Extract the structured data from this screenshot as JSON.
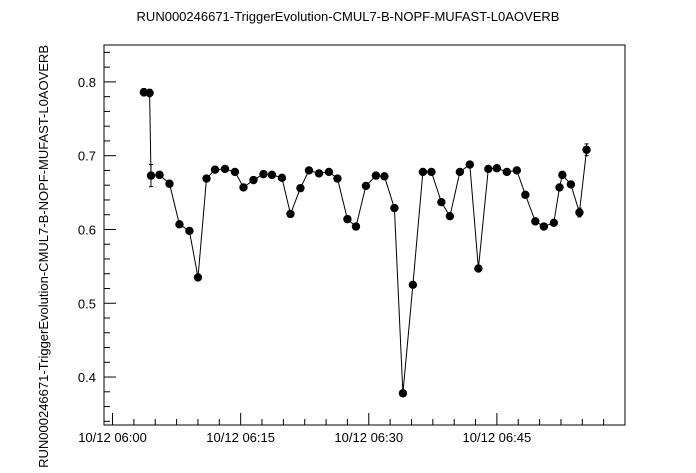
{
  "chart_data": {
    "type": "scatter",
    "title": "RUN000246671-TriggerEvolution-CMUL7-B-NOPF-MUFAST-L0AOVERB",
    "xlabel": "",
    "ylabel": "RUN000246671-TriggerEvolution-CMUL7-B-NOPF-MUFAST-L0AOVERB",
    "xlim": [
      "10/12 05:59:00",
      "10/12 07:00:00"
    ],
    "ylim": [
      0.335,
      0.85
    ],
    "x_ticks": [
      "10/12 06:00",
      "10/12 06:15",
      "10/12 06:30",
      "10/12 06:45"
    ],
    "y_ticks": [
      "0.4",
      "0.5",
      "0.6",
      "0.7",
      "0.8"
    ],
    "grid": false,
    "connected": true,
    "series": [
      {
        "x": [
          "10/12 06:03:40",
          "10/12 06:04:20",
          "10/12 06:04:30",
          "10/12 06:05:30",
          "10/12 06:06:40",
          "10/12 06:07:50",
          "10/12 06:09:00",
          "10/12 06:10:00",
          "10/12 06:11:00",
          "10/12 06:12:00",
          "10/12 06:13:10",
          "10/12 06:14:20",
          "10/12 06:15:20",
          "10/12 06:16:30",
          "10/12 06:17:40",
          "10/12 06:18:40",
          "10/12 06:19:50",
          "10/12 06:20:50",
          "10/12 06:22:00",
          "10/12 06:23:00",
          "10/12 06:24:10",
          "10/12 06:25:20",
          "10/12 06:26:20",
          "10/12 06:27:30",
          "10/12 06:28:30",
          "10/12 06:29:40",
          "10/12 06:30:50",
          "10/12 06:31:50",
          "10/12 06:33:00",
          "10/12 06:34:00",
          "10/12 06:35:10",
          "10/12 06:36:20",
          "10/12 06:37:20",
          "10/12 06:38:30",
          "10/12 06:39:30",
          "10/12 06:40:40",
          "10/12 06:41:50",
          "10/12 06:42:50",
          "10/12 06:44:00",
          "10/12 06:45:00",
          "10/12 06:46:10",
          "10/12 06:47:20",
          "10/12 06:48:20",
          "10/12 06:49:30",
          "10/12 06:50:30",
          "10/12 06:51:40",
          "10/12 06:52:20",
          "10/12 06:52:40",
          "10/12 06:53:40",
          "10/12 06:54:40",
          "10/12 06:55:30"
        ],
        "y": [
          0.786,
          0.785,
          0.673,
          0.674,
          0.662,
          0.607,
          0.598,
          0.535,
          0.669,
          0.681,
          0.682,
          0.678,
          0.657,
          0.667,
          0.675,
          0.674,
          0.67,
          0.621,
          0.656,
          0.68,
          0.676,
          0.678,
          0.669,
          0.614,
          0.604,
          0.659,
          0.673,
          0.672,
          0.629,
          0.378,
          0.525,
          0.678,
          0.678,
          0.637,
          0.618,
          0.678,
          0.688,
          0.547,
          0.682,
          0.683,
          0.678,
          0.68,
          0.647,
          0.611,
          0.604,
          0.609,
          0.657,
          0.674,
          0.661,
          0.623,
          0.708
        ],
        "err": [
          0.005,
          0.005,
          0.015,
          0.004,
          0.004,
          0.004,
          0.004,
          0.004,
          0.004,
          0.004,
          0.004,
          0.004,
          0.004,
          0.004,
          0.004,
          0.004,
          0.004,
          0.004,
          0.004,
          0.004,
          0.004,
          0.004,
          0.004,
          0.004,
          0.004,
          0.004,
          0.004,
          0.004,
          0.004,
          0.004,
          0.004,
          0.004,
          0.004,
          0.004,
          0.004,
          0.004,
          0.004,
          0.004,
          0.004,
          0.004,
          0.004,
          0.004,
          0.004,
          0.004,
          0.004,
          0.004,
          0.004,
          0.004,
          0.004,
          0.006,
          0.008
        ]
      }
    ]
  }
}
